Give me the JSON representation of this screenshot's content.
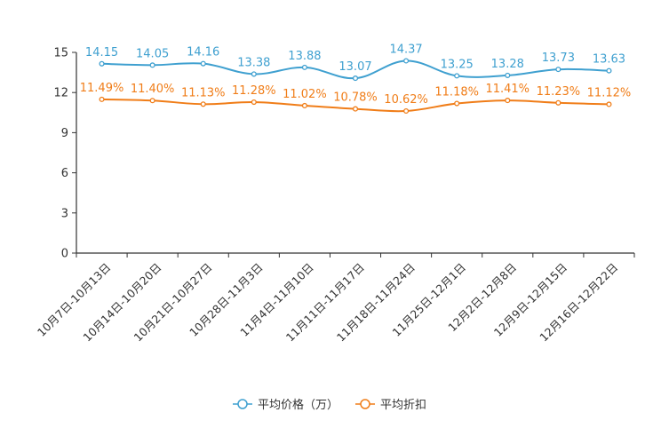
{
  "chart_data": {
    "type": "line",
    "categories": [
      "10月7日-10月13日",
      "10月14日-10月20日",
      "10月21日-10月27日",
      "10月28日-11月3日",
      "11月4日-11月10日",
      "11月11日-11月17日",
      "11月18日-11月24日",
      "11月25日-12月1日",
      "12月2日-12月8日",
      "12月9日-12月15日",
      "12月16日-12月22日"
    ],
    "series": [
      {
        "name": "平均价格（万）",
        "color": "#3fa0d0",
        "values": [
          14.15,
          14.05,
          14.16,
          13.38,
          13.88,
          13.07,
          14.37,
          13.25,
          13.28,
          13.73,
          13.63
        ],
        "labels": [
          "14.15",
          "14.05",
          "14.16",
          "13.38",
          "13.88",
          "13.07",
          "14.37",
          "13.25",
          "13.28",
          "13.73",
          "13.63"
        ]
      },
      {
        "name": "平均折扣",
        "color": "#f07d18",
        "values": [
          11.49,
          11.4,
          11.13,
          11.28,
          11.02,
          10.78,
          10.62,
          11.18,
          11.41,
          11.23,
          11.12
        ],
        "labels": [
          "11.49%",
          "11.40%",
          "11.13%",
          "11.28%",
          "11.02%",
          "10.78%",
          "10.62%",
          "11.18%",
          "11.41%",
          "11.23%",
          "11.12%"
        ]
      }
    ],
    "yticks": [
      "0",
      "3",
      "6",
      "9",
      "12",
      "15"
    ],
    "ylim": [
      0,
      15
    ],
    "grid": false,
    "legend": "bottom-center",
    "title": "",
    "xlabel": "",
    "ylabel": ""
  }
}
